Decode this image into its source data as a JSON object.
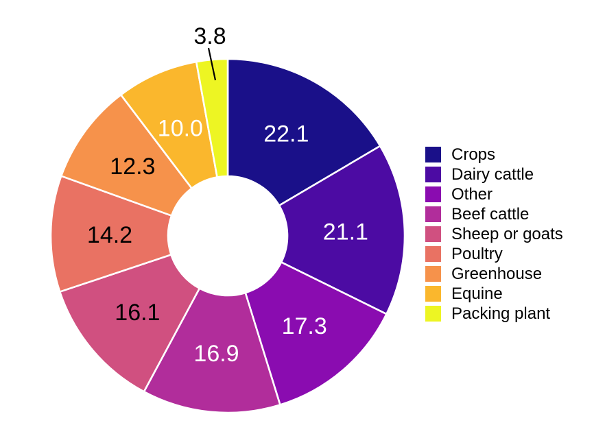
{
  "chart_data": {
    "type": "pie",
    "subtype": "donut",
    "title": "",
    "xlabel": "",
    "ylabel": "",
    "legend_position": "right",
    "direction": "clockwise",
    "start_angle": "12-oclock",
    "donut_hole_ratio": 0.34,
    "slice_border_color": "#ffffff",
    "background_color": "#ffffff",
    "categories": [
      "Crops",
      "Dairy cattle",
      "Other",
      "Beef cattle",
      "Sheep or goats",
      "Poultry",
      "Greenhouse",
      "Equine",
      "Packing plant"
    ],
    "values": [
      22.1,
      21.1,
      17.3,
      16.9,
      16.1,
      14.2,
      12.3,
      10.0,
      3.8
    ],
    "value_labels": [
      "22.1",
      "21.1",
      "17.3",
      "16.9",
      "16.1",
      "14.2",
      "12.3",
      "10.0",
      "3.8"
    ],
    "colors": [
      "#1a1089",
      "#4c0ba3",
      "#8a0cb0",
      "#b12d9b",
      "#d05080",
      "#e97263",
      "#f6924b",
      "#fab72d",
      "#edf523"
    ],
    "label_colors": [
      "#ffffff",
      "#ffffff",
      "#ffffff",
      "#ffffff",
      "#000000",
      "#000000",
      "#000000",
      "#ffffff",
      "#000000"
    ],
    "outside_label_categories": [
      "Packing plant"
    ],
    "outside_label_has_leader_line": true
  }
}
